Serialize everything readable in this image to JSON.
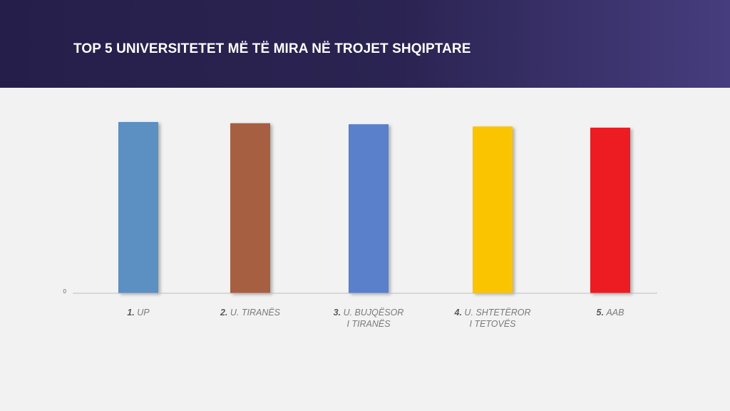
{
  "header": {
    "title": "TOP 5 UNIVERSITETET MË TË MIRA NË TROJET SHQIPTARE",
    "background_colors": [
      "#261e4a",
      "#463d7e"
    ]
  },
  "chart_data": {
    "type": "bar",
    "title": "TOP 5 UNIVERSITETET MË TË MIRA NË TROJET SHQIPTARE",
    "xlabel": "",
    "ylabel": "",
    "categories": [
      {
        "num": "1.",
        "lines": [
          "UP"
        ]
      },
      {
        "num": "2.",
        "lines": [
          "U. TIRANËS"
        ]
      },
      {
        "num": "3.",
        "lines": [
          "U. BUJQËSOR",
          "I TIRANËS"
        ]
      },
      {
        "num": "4.",
        "lines": [
          "U. SHTETËROR",
          "I TETOVËS"
        ]
      },
      {
        "num": "5.",
        "lines": [
          "AAB"
        ]
      }
    ],
    "values": [
      100,
      99.3,
      98.7,
      97.4,
      96.7
    ],
    "colors": [
      "#5b8fc2",
      "#a65e40",
      "#5a7fcb",
      "#fbc400",
      "#ec1c24"
    ],
    "yticks": [
      "0"
    ],
    "ylim": [
      0,
      120
    ],
    "grid": false,
    "legend": "none"
  }
}
